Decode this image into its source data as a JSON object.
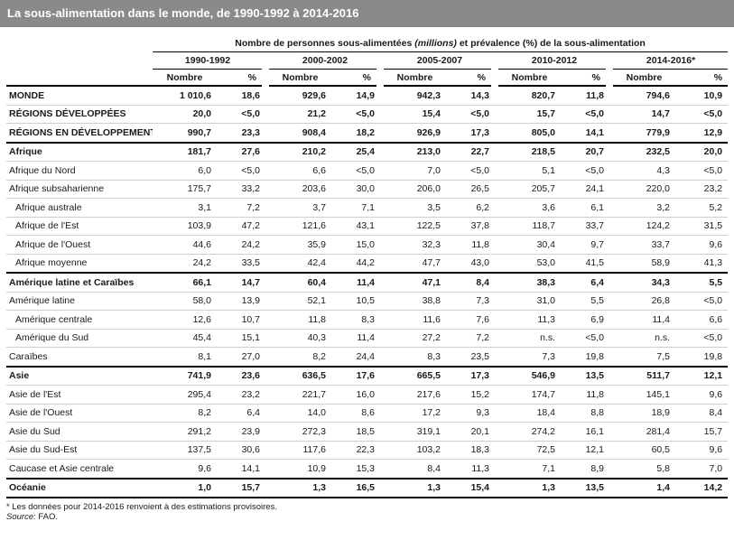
{
  "title": "La sous-alimentation dans le monde, de 1990-1992 à 2014-2016",
  "header": {
    "main_pre": "Nombre de personnes sous-alimentées ",
    "main_em": "(millions)",
    "main_post": " et prévalence (%) de la sous-alimentation",
    "periods": [
      "1990-1992",
      "2000-2002",
      "2005-2007",
      "2010-2012",
      "2014-2016*"
    ],
    "nombre": "Nombre",
    "pct": "%"
  },
  "rows": [
    {
      "name": "MONDE",
      "vals": [
        "1 010,6",
        "18,6",
        "929,6",
        "14,9",
        "942,3",
        "14,3",
        "820,7",
        "11,8",
        "794,6",
        "10,9"
      ]
    },
    {
      "name": "RÉGIONS DÉVELOPPÉES",
      "vals": [
        "20,0",
        "<5,0",
        "21,2",
        "<5,0",
        "15,4",
        "<5,0",
        "15,7",
        "<5,0",
        "14,7",
        "<5,0"
      ]
    },
    {
      "name": "RÉGIONS EN DÉVELOPPEMENT",
      "vals": [
        "990,7",
        "23,3",
        "908,4",
        "18,2",
        "926,9",
        "17,3",
        "805,0",
        "14,1",
        "779,9",
        "12,9"
      ]
    },
    {
      "name": "Afrique",
      "vals": [
        "181,7",
        "27,6",
        "210,2",
        "25,4",
        "213,0",
        "22,7",
        "218,5",
        "20,7",
        "232,5",
        "20,0"
      ]
    },
    {
      "name": "Afrique du Nord",
      "vals": [
        "6,0",
        "<5,0",
        "6,6",
        "<5,0",
        "7,0",
        "<5,0",
        "5,1",
        "<5,0",
        "4,3",
        "<5,0"
      ]
    },
    {
      "name": "Afrique subsaharienne",
      "vals": [
        "175,7",
        "33,2",
        "203,6",
        "30,0",
        "206,0",
        "26,5",
        "205,7",
        "24,1",
        "220,0",
        "23,2"
      ]
    },
    {
      "name": "Afrique australe",
      "vals": [
        "3,1",
        "7,2",
        "3,7",
        "7,1",
        "3,5",
        "6,2",
        "3,6",
        "6,1",
        "3,2",
        "5,2"
      ]
    },
    {
      "name": "Afrique de l'Est",
      "vals": [
        "103,9",
        "47,2",
        "121,6",
        "43,1",
        "122,5",
        "37,8",
        "118,7",
        "33,7",
        "124,2",
        "31,5"
      ]
    },
    {
      "name": "Afrique de l'Ouest",
      "vals": [
        "44,6",
        "24,2",
        "35,9",
        "15,0",
        "32,3",
        "11,8",
        "30,4",
        "9,7",
        "33,7",
        "9,6"
      ]
    },
    {
      "name": "Afrique moyenne",
      "vals": [
        "24,2",
        "33,5",
        "42,4",
        "44,2",
        "47,7",
        "43,0",
        "53,0",
        "41,5",
        "58,9",
        "41,3"
      ]
    },
    {
      "name": "Amérique latine et Caraïbes",
      "vals": [
        "66,1",
        "14,7",
        "60,4",
        "11,4",
        "47,1",
        "8,4",
        "38,3",
        "6,4",
        "34,3",
        "5,5"
      ]
    },
    {
      "name": "Amérique latine",
      "vals": [
        "58,0",
        "13,9",
        "52,1",
        "10,5",
        "38,8",
        "7,3",
        "31,0",
        "5,5",
        "26,8",
        "<5,0"
      ]
    },
    {
      "name": "Amérique centrale",
      "vals": [
        "12,6",
        "10,7",
        "11,8",
        "8,3",
        "11,6",
        "7,6",
        "11,3",
        "6,9",
        "11,4",
        "6,6"
      ]
    },
    {
      "name": "Amérique du Sud",
      "vals": [
        "45,4",
        "15,1",
        "40,3",
        "11,4",
        "27,2",
        "7,2",
        "n.s.",
        "<5,0",
        "n.s.",
        "<5,0"
      ]
    },
    {
      "name": "Caraïbes",
      "vals": [
        "8,1",
        "27,0",
        "8,2",
        "24,4",
        "8,3",
        "23,5",
        "7,3",
        "19,8",
        "7,5",
        "19,8"
      ]
    },
    {
      "name": "Asie",
      "vals": [
        "741,9",
        "23,6",
        "636,5",
        "17,6",
        "665,5",
        "17,3",
        "546,9",
        "13,5",
        "511,7",
        "12,1"
      ]
    },
    {
      "name": "Asie de l'Est",
      "vals": [
        "295,4",
        "23,2",
        "221,7",
        "16,0",
        "217,6",
        "15,2",
        "174,7",
        "11,8",
        "145,1",
        "9,6"
      ]
    },
    {
      "name": "Asie de l'Ouest",
      "vals": [
        "8,2",
        "6,4",
        "14,0",
        "8,6",
        "17,2",
        "9,3",
        "18,4",
        "8,8",
        "18,9",
        "8,4"
      ]
    },
    {
      "name": "Asie du Sud",
      "vals": [
        "291,2",
        "23,9",
        "272,3",
        "18,5",
        "319,1",
        "20,1",
        "274,2",
        "16,1",
        "281,4",
        "15,7"
      ]
    },
    {
      "name": "Asie du Sud-Est",
      "vals": [
        "137,5",
        "30,6",
        "117,6",
        "22,3",
        "103,2",
        "18,3",
        "72,5",
        "12,1",
        "60,5",
        "9,6"
      ]
    },
    {
      "name": "Caucase et Asie centrale",
      "vals": [
        "9,6",
        "14,1",
        "10,9",
        "15,3",
        "8,4",
        "11,3",
        "7,1",
        "8,9",
        "5,8",
        "7,0"
      ]
    },
    {
      "name": "Océanie",
      "vals": [
        "1,0",
        "15,7",
        "1,3",
        "16,5",
        "1,3",
        "15,4",
        "1,3",
        "13,5",
        "1,4",
        "14,2"
      ]
    }
  ],
  "footer": {
    "note": "* Les données pour 2014-2016 renvoient à des estimations provisoires.",
    "source_label": "Source:",
    "source_value": " FAO."
  }
}
